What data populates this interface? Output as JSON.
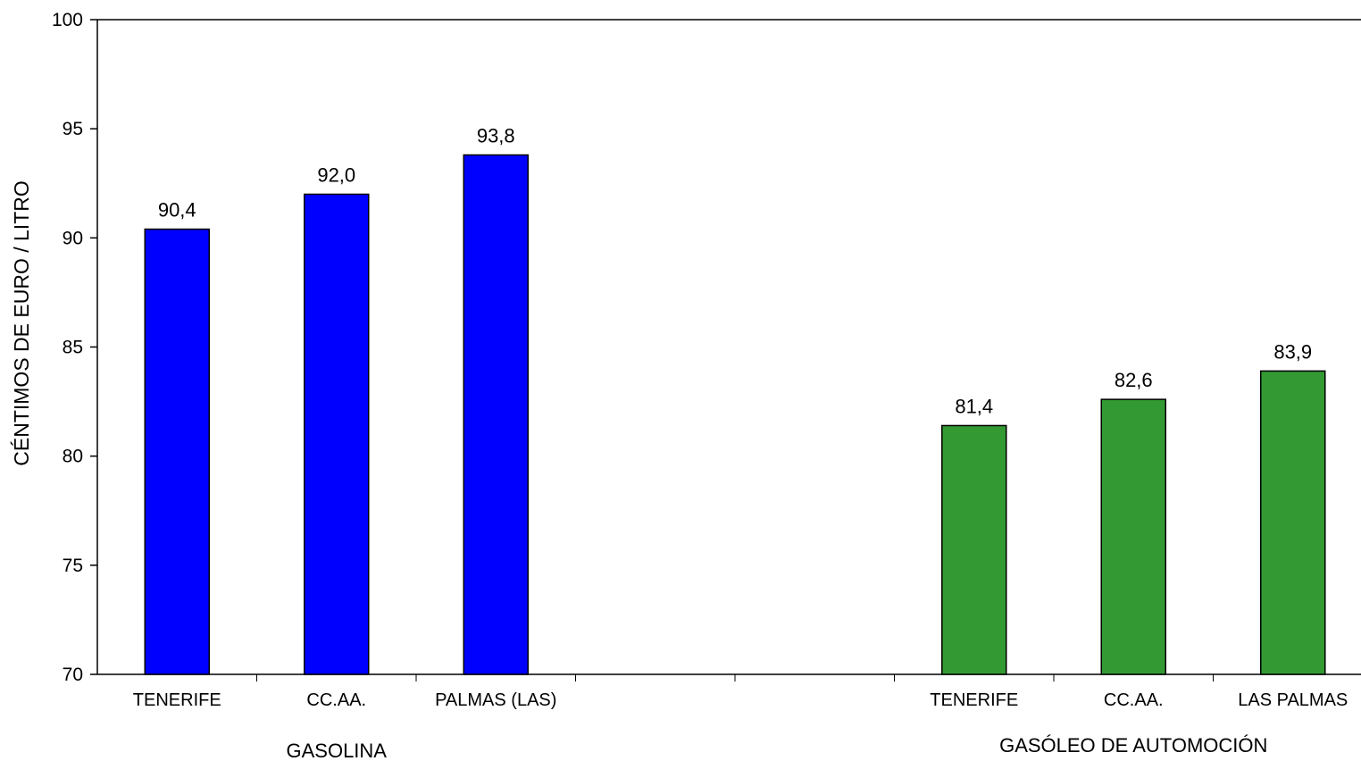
{
  "chart_data": {
    "type": "bar",
    "ylabel": "CÉNTIMOS DE EURO / LITRO",
    "ylim": [
      70,
      100
    ],
    "yticks": [
      "70",
      "75",
      "80",
      "85",
      "90",
      "95",
      "100"
    ],
    "grid": false,
    "legend": "none",
    "groups": [
      {
        "name": "GASOLINA",
        "color": "#0000FF",
        "categories": [
          "TENERIFE",
          "CC.AA.",
          "PALMAS (LAS)"
        ],
        "values": [
          90.4,
          92.0,
          93.8
        ],
        "labels": [
          "90,4",
          "92,0",
          "93,8"
        ]
      },
      {
        "name": "GASÓLEO DE AUTOMOCIÓN",
        "color": "#339933",
        "categories": [
          "TENERIFE",
          "CC.AA.",
          "LAS PALMAS"
        ],
        "values": [
          81.4,
          82.6,
          83.9
        ],
        "labels": [
          "81,4",
          "82,6",
          "83,9"
        ]
      }
    ]
  }
}
